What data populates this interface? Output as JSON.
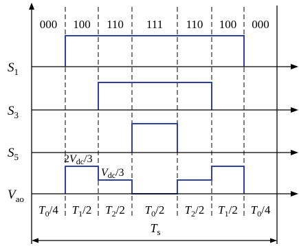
{
  "state_labels": [
    "000",
    "100",
    "110",
    "111",
    "110",
    "100",
    "000"
  ],
  "signals": {
    "s1": {
      "symbol": "S",
      "sub": "1",
      "levels": [
        0,
        1,
        1,
        1,
        1,
        1,
        0
      ]
    },
    "s3": {
      "symbol": "S",
      "sub": "3",
      "levels": [
        0,
        0,
        1,
        1,
        1,
        0,
        0
      ]
    },
    "s5": {
      "symbol": "S",
      "sub": "5",
      "levels": [
        0,
        0,
        0,
        1,
        0,
        0,
        0
      ]
    },
    "vao": {
      "symbol": "V",
      "sub": "ao",
      "levels": [
        0,
        0.6667,
        0.3333,
        0,
        0.3333,
        0.6667,
        0
      ]
    }
  },
  "level_labels": {
    "two_thirds": {
      "prefix": "2",
      "symbol": "V",
      "sub": "dc",
      "suffix": "/3"
    },
    "one_third": {
      "symbol": "V",
      "sub": "dc",
      "suffix": "/3"
    }
  },
  "intervals": [
    {
      "symbol": "T",
      "sub": "0",
      "suffix": "/4"
    },
    {
      "symbol": "T",
      "sub": "1",
      "suffix": "/2"
    },
    {
      "symbol": "T",
      "sub": "2",
      "suffix": "/2"
    },
    {
      "symbol": "T",
      "sub": "0",
      "suffix": "/2"
    },
    {
      "symbol": "T",
      "sub": "2",
      "suffix": "/2"
    },
    {
      "symbol": "T",
      "sub": "1",
      "suffix": "/2"
    },
    {
      "symbol": "T",
      "sub": "0",
      "suffix": "/4"
    }
  ],
  "period": {
    "symbol": "T",
    "sub": "s"
  },
  "colors": {
    "waveform": "#2f3f9f"
  }
}
